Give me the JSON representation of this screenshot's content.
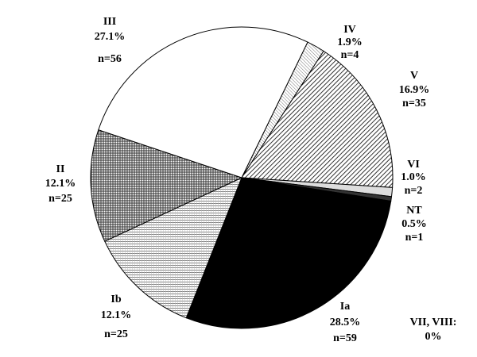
{
  "chart_data": {
    "type": "pie",
    "title": "",
    "start_angle_deg": 64.1,
    "direction": "clockwise",
    "slices": [
      {
        "key": "IV",
        "label": "IV",
        "percent_label": "1.9%",
        "n_label": "n=4",
        "value": 4,
        "fill": "dots",
        "color": "#000000"
      },
      {
        "key": "V",
        "label": "V",
        "percent_label": "16.9%",
        "n_label": "n=35",
        "value": 35,
        "fill": "diag-dense",
        "color": "#000000"
      },
      {
        "key": "VI",
        "label": "VI",
        "percent_label": "1.0%",
        "n_label": "n=2",
        "value": 2,
        "fill": "light-grey",
        "color": "#dddddd"
      },
      {
        "key": "NT",
        "label": "NT",
        "percent_label": "0.5%",
        "n_label": "n=1",
        "value": 1,
        "fill": "dark",
        "color": "#333333"
      },
      {
        "key": "Ia",
        "label": "Ia",
        "percent_label": "28.5%",
        "n_label": "n=59",
        "value": 59,
        "fill": "solid",
        "color": "#000000"
      },
      {
        "key": "Ib",
        "label": "Ib",
        "percent_label": "12.1%",
        "n_label": "n=25",
        "value": 25,
        "fill": "hlines",
        "color": "#000000"
      },
      {
        "key": "II",
        "label": "II",
        "percent_label": "12.1%",
        "n_label": "n=25",
        "value": 25,
        "fill": "grid",
        "color": "#000000"
      },
      {
        "key": "III",
        "label": "III",
        "percent_label": "27.1%",
        "n_label": "n=56",
        "value": 56,
        "fill": "white",
        "color": "#ffffff"
      }
    ],
    "note": {
      "line1": "VII, VIII:",
      "line2": "0%"
    }
  }
}
